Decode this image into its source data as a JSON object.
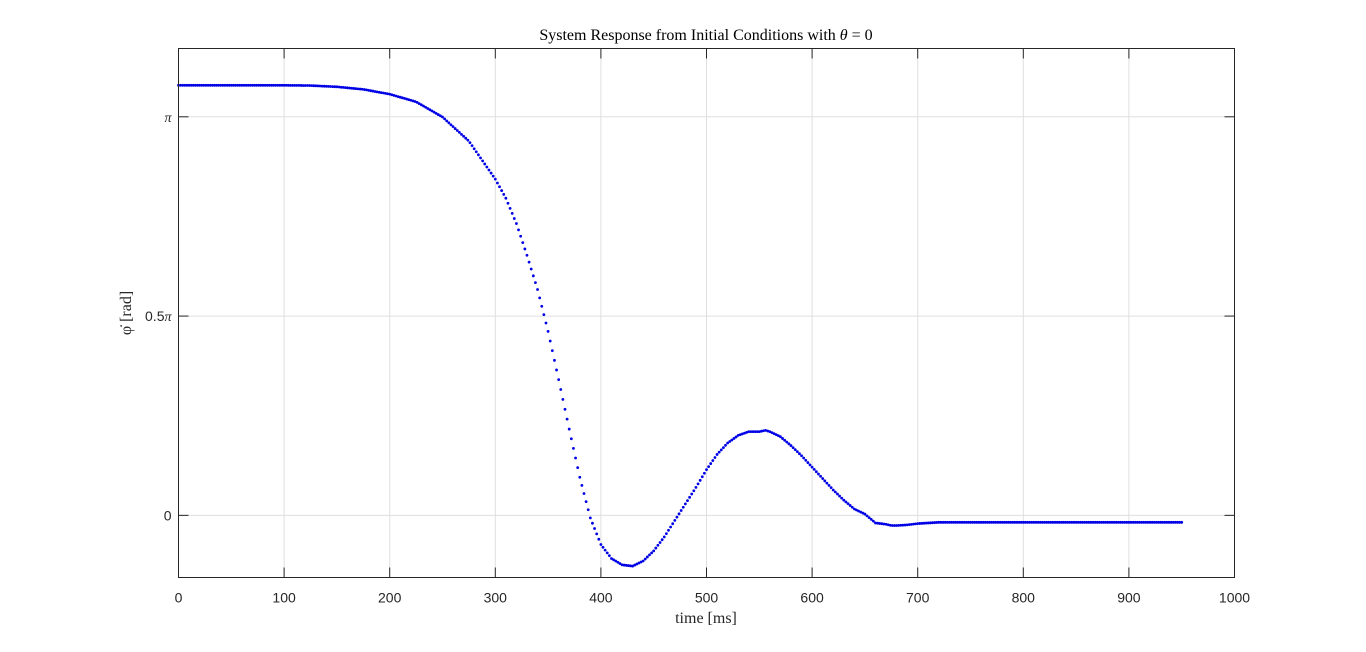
{
  "chart_data": {
    "type": "scatter",
    "title": "System Response from Initial Conditions with θ = 0",
    "title_parts": {
      "prefix": "System Response from Initial Conditions with ",
      "symbol": "θ",
      "suffix": " = 0"
    },
    "xlabel": "time [ms]",
    "ylabel": "φ̇ [rad]",
    "xlim": [
      0,
      1000
    ],
    "ylim_rad": [
      -0.49,
      3.68
    ],
    "x_ticks": [
      {
        "value": 0,
        "label": "0"
      },
      {
        "value": 100,
        "label": "100"
      },
      {
        "value": 200,
        "label": "200"
      },
      {
        "value": 300,
        "label": "300"
      },
      {
        "value": 400,
        "label": "400"
      },
      {
        "value": 500,
        "label": "500"
      },
      {
        "value": 600,
        "label": "600"
      },
      {
        "value": 700,
        "label": "700"
      },
      {
        "value": 800,
        "label": "800"
      },
      {
        "value": 900,
        "label": "900"
      },
      {
        "value": 1000,
        "label": "1000"
      }
    ],
    "y_ticks": [
      {
        "value": 0,
        "label": "0",
        "num": "0",
        "sym": ""
      },
      {
        "value": 1.5708,
        "label": "0.5π",
        "num": "0.5",
        "sym": "π"
      },
      {
        "value": 3.1416,
        "label": "π",
        "num": "",
        "sym": "π"
      }
    ],
    "grid": true,
    "marker_color": "#0000e6",
    "series": [
      {
        "x": [
          0,
          25,
          50,
          75,
          100,
          125,
          150,
          175,
          200,
          225,
          250,
          275,
          300,
          310,
          320,
          330,
          340,
          350,
          360,
          370,
          380,
          390,
          400,
          410,
          420,
          430,
          440,
          450,
          460,
          470,
          480,
          490,
          500,
          510,
          520,
          530,
          540,
          550,
          556,
          560,
          570,
          580,
          590,
          600,
          610,
          620,
          630,
          640,
          650,
          660,
          670,
          675,
          680,
          690,
          700,
          710,
          720,
          730,
          750,
          800,
          850,
          900,
          950
        ],
        "y": [
          3.39,
          3.39,
          3.39,
          3.39,
          3.39,
          3.388,
          3.378,
          3.358,
          3.32,
          3.26,
          3.14,
          2.95,
          2.65,
          2.5,
          2.3,
          2.05,
          1.78,
          1.45,
          1.07,
          0.68,
          0.3,
          -0.02,
          -0.23,
          -0.34,
          -0.39,
          -0.4,
          -0.36,
          -0.28,
          -0.17,
          -0.04,
          0.09,
          0.22,
          0.36,
          0.48,
          0.57,
          0.63,
          0.66,
          0.66,
          0.67,
          0.66,
          0.62,
          0.55,
          0.47,
          0.38,
          0.29,
          0.2,
          0.12,
          0.05,
          0.01,
          -0.06,
          -0.07,
          -0.08,
          -0.08,
          -0.075,
          -0.065,
          -0.06,
          -0.055,
          -0.055,
          -0.055,
          -0.055,
          -0.055,
          -0.055,
          -0.055
        ]
      }
    ]
  }
}
